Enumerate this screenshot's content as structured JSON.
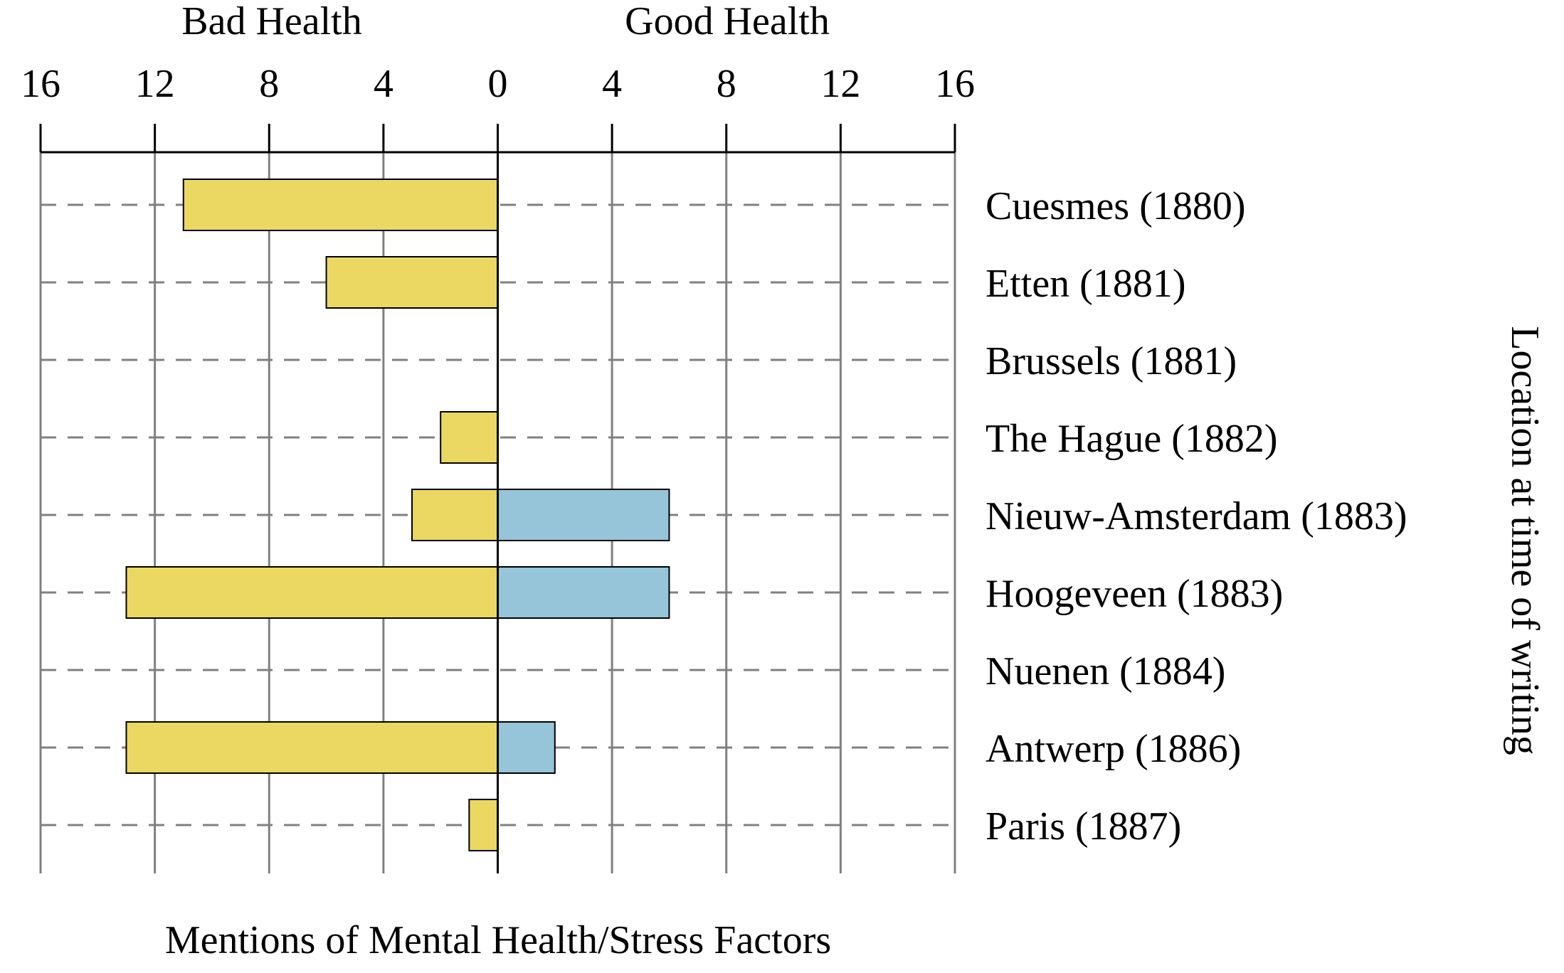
{
  "chart_data": {
    "type": "bar",
    "orientation": "horizontal-diverging",
    "title": "",
    "xlabel": "Mentions of Mental Health/Stress Factors",
    "ylabel": "Location at time of writing",
    "side_labels": {
      "left": "Bad Health",
      "right": "Good Health"
    },
    "xlim": [
      -16,
      16
    ],
    "xticks": [
      16,
      12,
      8,
      4,
      0,
      4,
      8,
      12,
      16
    ],
    "categories": [
      "Cuesmes (1880)",
      "Etten (1881)",
      "Brussels (1881)",
      "The Hague (1882)",
      "Nieuw-Amsterdam (1883)",
      "Hoogeveen (1883)",
      "Nuenen (1884)",
      "Antwerp (1886)",
      "Paris (1887)"
    ],
    "series": [
      {
        "name": "Bad Health",
        "color": "#ebd862",
        "values": [
          11,
          6,
          0,
          2,
          3,
          13,
          0,
          13,
          1
        ]
      },
      {
        "name": "Good Health",
        "color": "#96c4d9",
        "values": [
          0,
          0,
          0,
          0,
          6,
          6,
          0,
          2,
          0
        ]
      }
    ],
    "grid": true,
    "gridline_color": "#808080",
    "row_guide_style": "dashed"
  }
}
